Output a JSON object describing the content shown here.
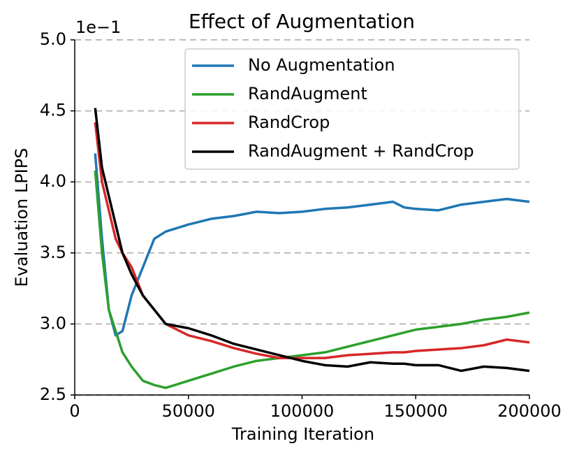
{
  "chart_data": {
    "type": "line",
    "title": "Effect of Augmentation",
    "x_label": "Training Iteration",
    "y_label": "Evaluation LPIPS",
    "y_offset_label": "1e−1",
    "x": [
      9000,
      12000,
      15000,
      18000,
      21000,
      25000,
      30000,
      35000,
      40000,
      50000,
      60000,
      70000,
      80000,
      90000,
      100000,
      110000,
      120000,
      130000,
      140000,
      145000,
      150000,
      160000,
      170000,
      180000,
      190000,
      200000
    ],
    "series": [
      {
        "name": "No Augmentation",
        "color": "#1f77b4",
        "values": [
          4.2,
          3.6,
          3.1,
          2.92,
          2.95,
          3.2,
          3.4,
          3.6,
          3.65,
          3.7,
          3.74,
          3.76,
          3.79,
          3.78,
          3.79,
          3.81,
          3.82,
          3.84,
          3.86,
          3.82,
          3.81,
          3.8,
          3.84,
          3.86,
          3.88,
          3.86
        ]
      },
      {
        "name": "RandAugment",
        "color": "#2ca02c",
        "values": [
          4.08,
          3.5,
          3.1,
          2.95,
          2.8,
          2.7,
          2.6,
          2.57,
          2.55,
          2.6,
          2.65,
          2.7,
          2.74,
          2.76,
          2.78,
          2.8,
          2.84,
          2.88,
          2.92,
          2.94,
          2.96,
          2.98,
          3.0,
          3.03,
          3.05,
          3.08
        ]
      },
      {
        "name": "RandCrop",
        "color": "#d62728",
        "values": [
          4.42,
          4.0,
          3.8,
          3.6,
          3.5,
          3.4,
          3.2,
          3.1,
          3.0,
          2.92,
          2.88,
          2.83,
          2.79,
          2.76,
          2.76,
          2.76,
          2.78,
          2.79,
          2.8,
          2.8,
          2.81,
          2.82,
          2.83,
          2.85,
          2.89,
          2.87
        ]
      },
      {
        "name": "RandAugment + RandCrop",
        "color": "#000000",
        "values": [
          4.52,
          4.1,
          3.9,
          3.7,
          3.5,
          3.35,
          3.2,
          3.1,
          3.0,
          2.97,
          2.92,
          2.86,
          2.82,
          2.78,
          2.74,
          2.71,
          2.7,
          2.73,
          2.72,
          2.72,
          2.71,
          2.71,
          2.67,
          2.7,
          2.69,
          2.67
        ]
      }
    ],
    "xlim": [
      0,
      200000
    ],
    "ylim": [
      2.5,
      5.0
    ],
    "xticks": [
      0,
      50000,
      100000,
      150000,
      200000
    ],
    "yticks": [
      2.5,
      {
        "value": 3,
        "label": "3.0"
      },
      3.5,
      {
        "value": 4,
        "label": "4.0"
      },
      4.5,
      {
        "value": 5,
        "label": "5.0"
      }
    ],
    "grid": true,
    "legend": "upper right"
  }
}
